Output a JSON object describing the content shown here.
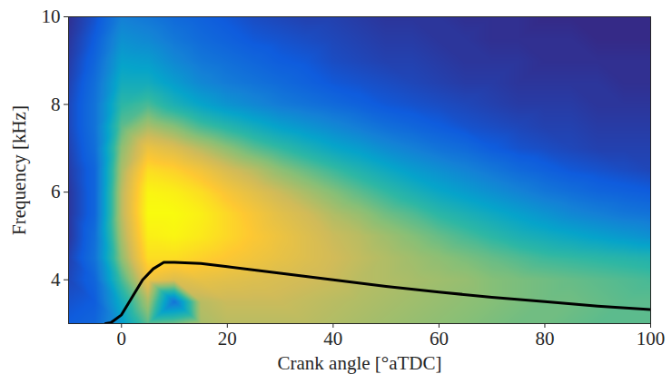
{
  "chart_data": {
    "type": "heatmap",
    "xlabel": "Crank angle [°aTDC]",
    "ylabel": "Frequency [kHz]",
    "xlim": [
      -10,
      100
    ],
    "ylim": [
      3,
      10
    ],
    "xticks": [
      0,
      20,
      40,
      60,
      80,
      100
    ],
    "yticks": [
      4,
      6,
      8,
      10
    ],
    "heatmap": {
      "x": [
        -10,
        -5,
        0,
        5,
        10,
        15,
        20,
        25,
        30,
        35,
        40,
        45,
        50,
        55,
        60,
        65,
        70,
        75,
        80,
        85,
        90,
        95,
        100
      ],
      "y": [
        3,
        3.5,
        4,
        4.5,
        5,
        5.5,
        6,
        6.5,
        7,
        7.5,
        8,
        8.5,
        9,
        9.5,
        10
      ],
      "z": [
        [
          0.4,
          0.42,
          0.55,
          0.7,
          0.72,
          0.78,
          0.8,
          0.8,
          0.8,
          0.8,
          0.79,
          0.78,
          0.77,
          0.76,
          0.75,
          0.74,
          0.73,
          0.72,
          0.72,
          0.71,
          0.7,
          0.7,
          0.7
        ],
        [
          0.38,
          0.4,
          0.6,
          0.78,
          0.45,
          0.8,
          0.82,
          0.82,
          0.82,
          0.81,
          0.8,
          0.79,
          0.78,
          0.77,
          0.76,
          0.75,
          0.74,
          0.73,
          0.72,
          0.72,
          0.71,
          0.7,
          0.7
        ],
        [
          0.36,
          0.42,
          0.68,
          0.88,
          0.85,
          0.87,
          0.86,
          0.85,
          0.84,
          0.83,
          0.82,
          0.8,
          0.79,
          0.78,
          0.77,
          0.76,
          0.74,
          0.73,
          0.72,
          0.71,
          0.7,
          0.69,
          0.68
        ],
        [
          0.35,
          0.45,
          0.75,
          0.95,
          0.95,
          0.93,
          0.91,
          0.89,
          0.87,
          0.85,
          0.83,
          0.81,
          0.79,
          0.77,
          0.75,
          0.73,
          0.71,
          0.69,
          0.67,
          0.66,
          0.65,
          0.64,
          0.63
        ],
        [
          0.33,
          0.44,
          0.78,
          0.98,
          0.99,
          0.97,
          0.94,
          0.91,
          0.88,
          0.85,
          0.82,
          0.8,
          0.77,
          0.74,
          0.71,
          0.68,
          0.65,
          0.62,
          0.6,
          0.58,
          0.56,
          0.54,
          0.52
        ],
        [
          0.33,
          0.42,
          0.8,
          1.0,
          1.0,
          0.98,
          0.94,
          0.9,
          0.86,
          0.83,
          0.79,
          0.76,
          0.72,
          0.69,
          0.65,
          0.62,
          0.59,
          0.56,
          0.53,
          0.5,
          0.48,
          0.46,
          0.45
        ],
        [
          0.33,
          0.42,
          0.8,
          0.99,
          0.98,
          0.95,
          0.9,
          0.86,
          0.82,
          0.78,
          0.74,
          0.7,
          0.66,
          0.62,
          0.58,
          0.55,
          0.52,
          0.49,
          0.46,
          0.44,
          0.42,
          0.41,
          0.4
        ],
        [
          0.34,
          0.42,
          0.78,
          0.95,
          0.93,
          0.89,
          0.84,
          0.8,
          0.75,
          0.71,
          0.67,
          0.63,
          0.59,
          0.55,
          0.52,
          0.49,
          0.46,
          0.43,
          0.41,
          0.39,
          0.38,
          0.37,
          0.36
        ],
        [
          0.35,
          0.44,
          0.75,
          0.88,
          0.85,
          0.8,
          0.75,
          0.7,
          0.66,
          0.62,
          0.58,
          0.55,
          0.51,
          0.48,
          0.45,
          0.43,
          0.4,
          0.38,
          0.37,
          0.36,
          0.35,
          0.35,
          0.35
        ],
        [
          0.36,
          0.45,
          0.7,
          0.78,
          0.74,
          0.68,
          0.64,
          0.6,
          0.56,
          0.53,
          0.5,
          0.47,
          0.44,
          0.42,
          0.4,
          0.38,
          0.37,
          0.36,
          0.35,
          0.35,
          0.34,
          0.34,
          0.34
        ],
        [
          0.36,
          0.45,
          0.65,
          0.68,
          0.62,
          0.57,
          0.53,
          0.5,
          0.47,
          0.45,
          0.43,
          0.41,
          0.39,
          0.38,
          0.37,
          0.36,
          0.35,
          0.34,
          0.34,
          0.34,
          0.33,
          0.33,
          0.33
        ],
        [
          0.35,
          0.44,
          0.6,
          0.6,
          0.55,
          0.5,
          0.47,
          0.45,
          0.43,
          0.41,
          0.39,
          0.38,
          0.37,
          0.36,
          0.35,
          0.34,
          0.34,
          0.33,
          0.33,
          0.33,
          0.33,
          0.32,
          0.32
        ],
        [
          0.34,
          0.42,
          0.56,
          0.55,
          0.5,
          0.46,
          0.44,
          0.42,
          0.4,
          0.39,
          0.37,
          0.36,
          0.35,
          0.35,
          0.34,
          0.33,
          0.33,
          0.33,
          0.32,
          0.32,
          0.32,
          0.32,
          0.32
        ],
        [
          0.33,
          0.4,
          0.52,
          0.5,
          0.46,
          0.43,
          0.41,
          0.39,
          0.38,
          0.37,
          0.36,
          0.35,
          0.34,
          0.34,
          0.33,
          0.33,
          0.32,
          0.32,
          0.32,
          0.32,
          0.31,
          0.31,
          0.31
        ],
        [
          0.32,
          0.38,
          0.48,
          0.46,
          0.43,
          0.41,
          0.39,
          0.37,
          0.36,
          0.35,
          0.35,
          0.34,
          0.33,
          0.33,
          0.33,
          0.32,
          0.32,
          0.32,
          0.31,
          0.31,
          0.31,
          0.31,
          0.31
        ]
      ]
    },
    "series": [
      {
        "type": "line",
        "color": "#000000",
        "x": [
          -3,
          -2,
          0,
          2,
          4,
          6,
          8,
          10,
          15,
          20,
          30,
          40,
          50,
          60,
          70,
          80,
          90,
          100
        ],
        "values": [
          3.0,
          3.02,
          3.2,
          3.6,
          4.0,
          4.25,
          4.4,
          4.4,
          4.37,
          4.3,
          4.15,
          4.0,
          3.85,
          3.72,
          3.6,
          3.5,
          3.4,
          3.32
        ]
      }
    ]
  }
}
